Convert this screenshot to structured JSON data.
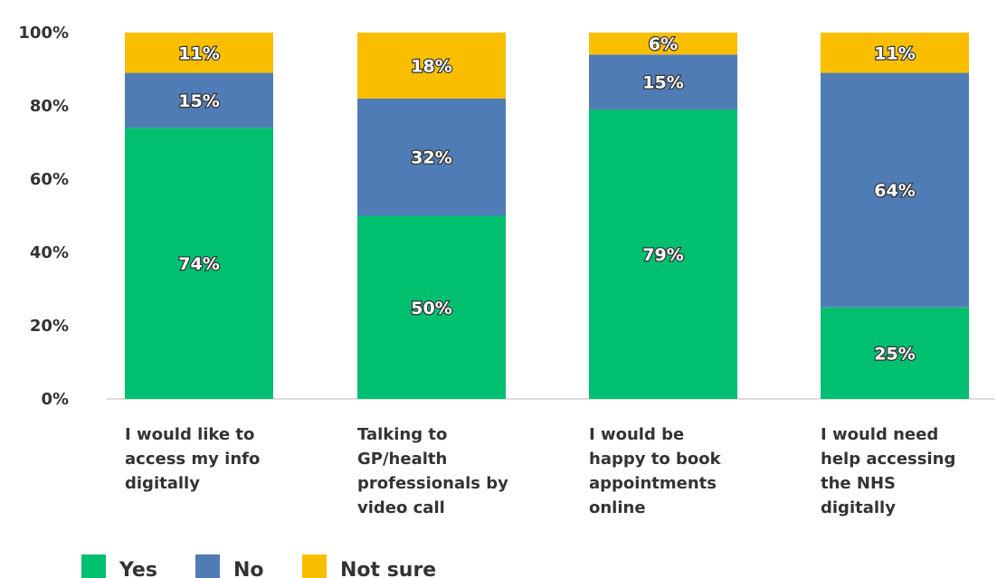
{
  "chart_data": {
    "type": "bar",
    "stacked": true,
    "categories": [
      [
        "I would like to",
        "access my info",
        "digitally"
      ],
      [
        "Talking to",
        "GP/health",
        "professionals by",
        "video call"
      ],
      [
        "I would be",
        "happy to book",
        "appointments",
        "online"
      ],
      [
        "I would need",
        "help accessing",
        "the NHS",
        "digitally"
      ]
    ],
    "series": [
      {
        "name": "Yes",
        "color": "#00bf6f",
        "values": [
          74,
          50,
          79,
          25
        ],
        "labels": [
          "74%",
          "50%",
          "79%",
          "25%"
        ]
      },
      {
        "name": "No",
        "color": "#507cb6",
        "values": [
          15,
          32,
          15,
          64
        ],
        "labels": [
          "15%",
          "32%",
          "15%",
          "64%"
        ]
      },
      {
        "name": "Not sure",
        "color": "#f9be00",
        "values": [
          11,
          18,
          6,
          11
        ],
        "labels": [
          "11%",
          "18%",
          "6%",
          "11%"
        ]
      }
    ],
    "yticks": [
      "0%",
      "20%",
      "40%",
      "60%",
      "80%",
      "100%"
    ],
    "ylim": [
      0,
      100
    ],
    "grid": false,
    "legend": "bottom-left"
  }
}
